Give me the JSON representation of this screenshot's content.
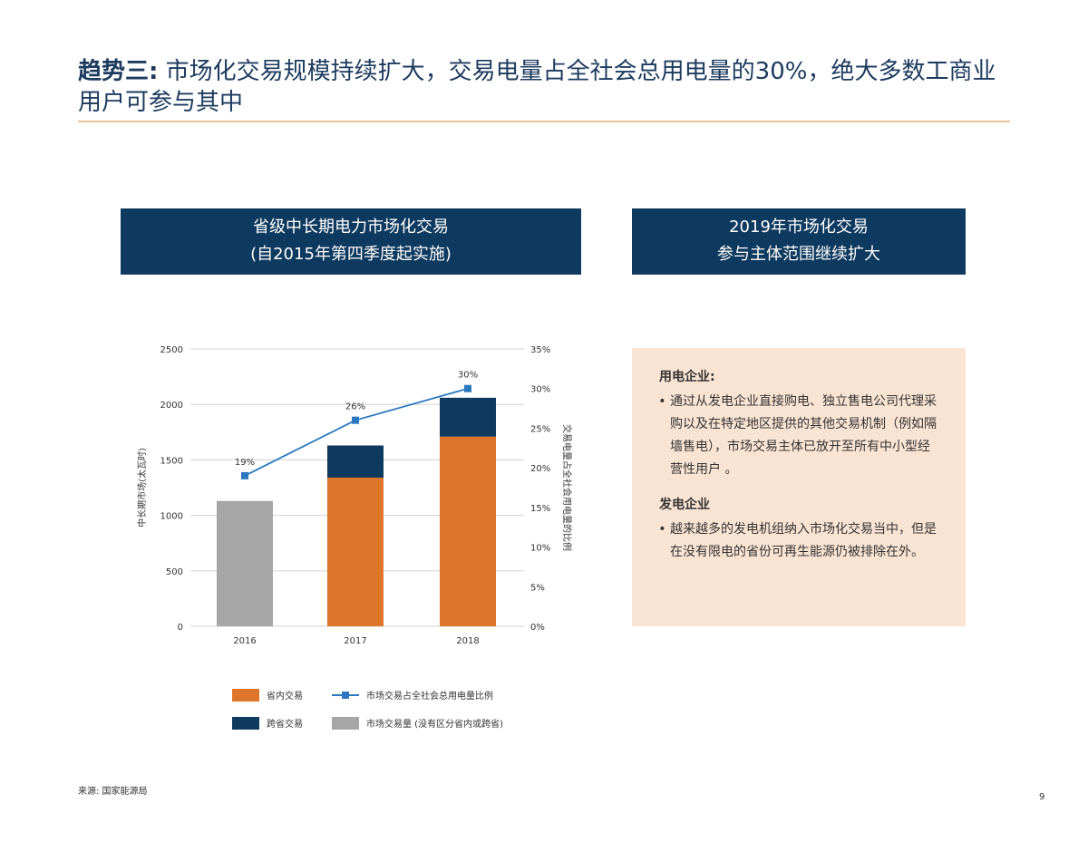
{
  "title": {
    "bold": "趋势三:",
    "text": " 市场化交易规模持续扩大，交易电量占全社会总用电量的30%，绝大多数工商业用户可参与其中"
  },
  "left_header": {
    "line1": "省级中长期电力市场化交易",
    "line2": "(自2015年第四季度起实施)"
  },
  "right_header": {
    "line1": "2019年市场化交易",
    "line2": "参与主体范围继续扩大"
  },
  "right_box": {
    "sections": [
      {
        "heading": "用电企业:",
        "bullet": "通过从发电企业直接购电、独立售电公司代理采购以及在特定地区提供的其他交易机制（例如隔墙售电），市场交易主体已放开至所有中小型经营性用户 。"
      },
      {
        "heading": "发电企业",
        "bullet": "越来越多的发电机组纳入市场化交易当中，但是在没有限电的省份可再生能源仍被排除在外。"
      }
    ]
  },
  "source": "来源: 国家能源局",
  "page_number": "9",
  "colors": {
    "orange": "#dd762a",
    "navy": "#0f3a5f",
    "gray": "#a6a6a6",
    "line": "#2a78bf"
  },
  "chart_data": {
    "type": "bar",
    "categories": [
      "2016",
      "2017",
      "2018"
    ],
    "series": [
      {
        "name": "省内交易",
        "values": [
          0,
          1340,
          1710
        ],
        "color": "#dd762a"
      },
      {
        "name": "跨省交易",
        "values": [
          0,
          290,
          350
        ],
        "color": "#0f3a5f"
      },
      {
        "name": "市场交易量 (没有区分省内或跨省)",
        "values": [
          1130,
          0,
          0
        ],
        "color": "#a6a6a6"
      },
      {
        "name": "市场交易占全社会总用电量比例",
        "type": "line",
        "axis": "right",
        "values": [
          19,
          26,
          30
        ],
        "labels": [
          "19%",
          "26%",
          "30%"
        ],
        "color": "#2a78bf"
      }
    ],
    "ylabel": "中长期市场(太瓦时)",
    "ylabel_right": "交易电量占全社会用电量的比例",
    "ylim": [
      0,
      2500
    ],
    "yticks": [
      "0",
      "500",
      "1000",
      "1500",
      "2000",
      "2500"
    ],
    "ylim_right": [
      0,
      35
    ],
    "yticks_right": [
      "0%",
      "5%",
      "10%",
      "15%",
      "20%",
      "25%",
      "30%",
      "35%"
    ],
    "grid": true,
    "legend_placement": "bottom"
  }
}
